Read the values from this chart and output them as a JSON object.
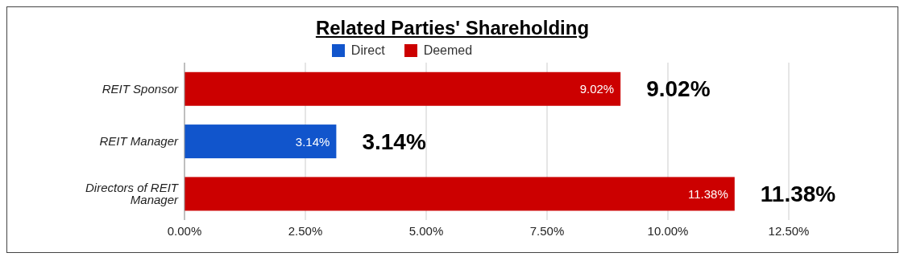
{
  "chart_data": {
    "type": "bar",
    "orientation": "horizontal",
    "stacked": true,
    "title": "Related Parties' Shareholding",
    "categories": [
      "REIT Sponsor",
      "REIT Manager",
      "Directors of REIT Manager"
    ],
    "series": [
      {
        "name": "Direct",
        "color": "#1155cc",
        "values": [
          null,
          3.14,
          null
        ],
        "value_labels": [
          null,
          "3.14%",
          null
        ]
      },
      {
        "name": "Deemed",
        "color": "#cc0000",
        "values": [
          9.02,
          null,
          11.38
        ],
        "value_labels": [
          "9.02%",
          null,
          "11.38%"
        ]
      }
    ],
    "totals": [
      "9.02%",
      "3.14%",
      "11.38%"
    ],
    "xlim": [
      0,
      12.5
    ],
    "xticks": [
      {
        "value": 0,
        "label": "0.00%"
      },
      {
        "value": 2.5,
        "label": "2.50%"
      },
      {
        "value": 5,
        "label": "5.00%"
      },
      {
        "value": 7.5,
        "label": "7.50%"
      },
      {
        "value": 10,
        "label": "10.00%"
      },
      {
        "value": 12.5,
        "label": "12.50%"
      }
    ],
    "grid": "x",
    "legend": "top"
  }
}
